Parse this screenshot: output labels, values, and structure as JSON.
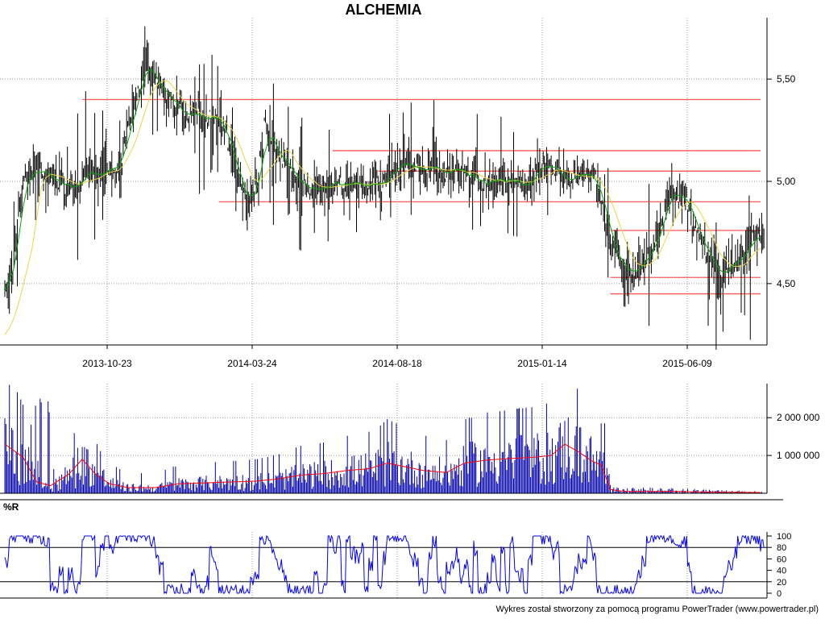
{
  "title": "ALCHEMIA",
  "footer": "Wykres został stworzony za pomocą programu PowerTrader (www.powertrader.pl)",
  "chart_data": [
    {
      "type": "candlestick",
      "name": "price",
      "x_ticks": [
        "2013-10-23",
        "2014-03-24",
        "2014-08-18",
        "2015-01-14",
        "2015-06-09"
      ],
      "y_ticks": [
        "5,50",
        "5,00",
        "4,50"
      ],
      "y_tick_values": [
        5.5,
        5.0,
        4.5
      ],
      "ylim": [
        4.2,
        5.8
      ],
      "grid": true,
      "close_keypoints": [
        [
          0,
          4.45
        ],
        [
          2,
          4.7
        ],
        [
          4,
          5.0
        ],
        [
          6,
          5.05
        ],
        [
          10,
          5.0
        ],
        [
          14,
          4.98
        ],
        [
          18,
          5.02
        ],
        [
          22,
          5.05
        ],
        [
          25,
          5.1
        ],
        [
          27,
          5.25
        ],
        [
          29,
          5.45
        ],
        [
          31,
          5.6
        ],
        [
          33,
          5.5
        ],
        [
          36,
          5.38
        ],
        [
          40,
          5.32
        ],
        [
          44,
          5.3
        ],
        [
          47,
          5.3
        ],
        [
          49,
          5.2
        ],
        [
          51,
          5.0
        ],
        [
          53,
          4.9
        ],
        [
          55,
          5.0
        ],
        [
          57,
          5.25
        ],
        [
          60,
          5.15
        ],
        [
          63,
          5.05
        ],
        [
          66,
          4.98
        ],
        [
          69,
          4.95
        ],
        [
          72,
          4.98
        ],
        [
          75,
          5.0
        ],
        [
          78,
          4.98
        ],
        [
          81,
          4.98
        ],
        [
          84,
          5.0
        ],
        [
          86,
          5.1
        ],
        [
          88,
          5.08
        ],
        [
          90,
          5.05
        ],
        [
          93,
          5.05
        ],
        [
          96,
          5.05
        ],
        [
          99,
          5.04
        ],
        [
          102,
          5.03
        ],
        [
          105,
          5.0
        ],
        [
          108,
          5.0
        ],
        [
          111,
          5.0
        ],
        [
          114,
          5.0
        ],
        [
          116,
          5.02
        ],
        [
          118,
          5.05
        ],
        [
          121,
          5.04
        ],
        [
          124,
          5.03
        ],
        [
          127,
          5.02
        ],
        [
          129,
          5.02
        ],
        [
          131,
          4.85
        ],
        [
          133,
          4.7
        ],
        [
          135,
          4.6
        ],
        [
          137,
          4.55
        ],
        [
          139,
          4.58
        ],
        [
          141,
          4.65
        ],
        [
          143,
          4.75
        ],
        [
          145,
          4.9
        ],
        [
          147,
          4.92
        ],
        [
          149,
          4.9
        ],
        [
          151,
          4.8
        ],
        [
          153,
          4.7
        ],
        [
          155,
          4.6
        ],
        [
          157,
          4.55
        ],
        [
          159,
          4.6
        ],
        [
          161,
          4.65
        ],
        [
          163,
          4.7
        ],
        [
          165,
          4.72
        ],
        [
          166,
          4.7
        ]
      ],
      "support_resistance_lines": [
        {
          "y": 5.4,
          "x_from": 17,
          "x_to": 166
        },
        {
          "y": 5.15,
          "x_from": 72,
          "x_to": 166
        },
        {
          "y": 5.05,
          "x_from": 82,
          "x_to": 166
        },
        {
          "y": 4.9,
          "x_from": 47,
          "x_to": 166
        },
        {
          "y": 4.76,
          "x_from": 133,
          "x_to": 166
        },
        {
          "y": 4.53,
          "x_from": 133,
          "x_to": 166
        },
        {
          "y": 4.45,
          "x_from": 133,
          "x_to": 166
        }
      ],
      "series": [
        {
          "name": "",
          "role": "price-bars",
          "color": "#000000"
        },
        {
          "name": "",
          "role": "short-average",
          "color": "#00aa00"
        },
        {
          "name": "",
          "role": "long-average",
          "color": "#e8d840"
        }
      ],
      "line_colors": {
        "support": "#ff5555",
        "grid": "#999999"
      }
    },
    {
      "type": "bar",
      "name": "volume",
      "y_ticks": [
        "2 000 000",
        "1 000 000"
      ],
      "y_tick_values": [
        2000000,
        1000000
      ],
      "ylim": [
        0,
        2900000
      ],
      "average_keypoints": [
        [
          0,
          1300000
        ],
        [
          4,
          950000
        ],
        [
          7,
          300000
        ],
        [
          10,
          200000
        ],
        [
          14,
          500000
        ],
        [
          17,
          900000
        ],
        [
          20,
          500000
        ],
        [
          23,
          250000
        ],
        [
          27,
          150000
        ],
        [
          33,
          150000
        ],
        [
          38,
          250000
        ],
        [
          45,
          280000
        ],
        [
          50,
          300000
        ],
        [
          55,
          320000
        ],
        [
          60,
          380000
        ],
        [
          65,
          480000
        ],
        [
          70,
          520000
        ],
        [
          75,
          600000
        ],
        [
          80,
          650000
        ],
        [
          84,
          800000
        ],
        [
          88,
          700000
        ],
        [
          92,
          600000
        ],
        [
          97,
          550000
        ],
        [
          101,
          800000
        ],
        [
          106,
          880000
        ],
        [
          111,
          920000
        ],
        [
          116,
          950000
        ],
        [
          120,
          1000000
        ],
        [
          123,
          1300000
        ],
        [
          126,
          1100000
        ],
        [
          129,
          850000
        ],
        [
          131,
          750000
        ],
        [
          133,
          100000
        ],
        [
          136,
          50000
        ],
        [
          145,
          50000
        ],
        [
          155,
          30000
        ],
        [
          166,
          20000
        ]
      ],
      "bar_color": "#0000aa",
      "average_color": "#ff0000"
    },
    {
      "type": "line",
      "name": "williams-r",
      "label": "%R",
      "y_ticks": [
        "100",
        "80",
        "60",
        "40",
        "20",
        "0"
      ],
      "y_tick_values": [
        100,
        80,
        60,
        40,
        20,
        0
      ],
      "ylim": [
        0,
        100
      ],
      "reference_levels": [
        80,
        20
      ],
      "line_color": "#0000ff"
    }
  ]
}
